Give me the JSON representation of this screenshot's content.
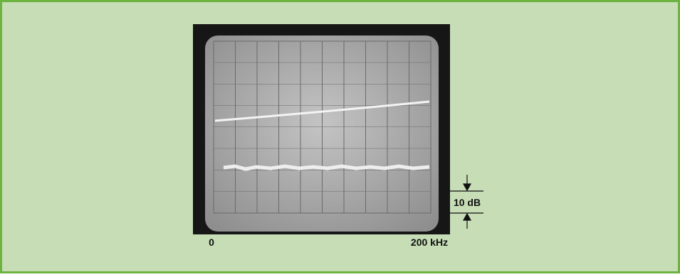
{
  "figure": {
    "x_start_label": "0",
    "x_end_label": "200 kHz",
    "scale_label": "10 dB"
  }
}
